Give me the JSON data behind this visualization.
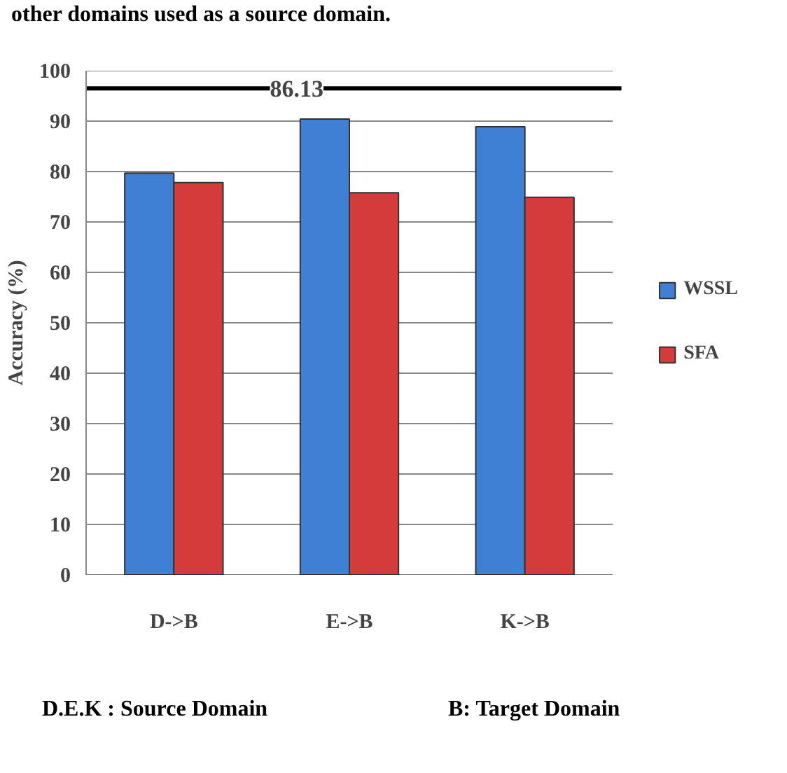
{
  "chart_data": {
    "type": "bar",
    "ylabel": "Accuracy (%)",
    "categories": [
      "D->B",
      "E->B",
      "K->B"
    ],
    "series": [
      {
        "name": "WSSL",
        "color": "#3f7fd4",
        "values": [
          79.7,
          90.4,
          88.9
        ]
      },
      {
        "name": "SFA",
        "color": "#d63b3b",
        "values": [
          77.8,
          75.8,
          74.9
        ]
      }
    ],
    "ylim": [
      0,
      100
    ],
    "yticks": [
      0,
      10,
      20,
      30,
      40,
      50,
      60,
      70,
      80,
      90,
      100
    ],
    "grid": "y",
    "legend": "right",
    "ref_lines": [
      {
        "axis": "y",
        "value": 96.5,
        "color": "#000000"
      }
    ],
    "annotations": [
      {
        "text": "86.13",
        "y": 96.5
      },
      "other domains used as a source domain.",
      "D.E.K : Source Domain",
      "B: Target Domain"
    ]
  }
}
